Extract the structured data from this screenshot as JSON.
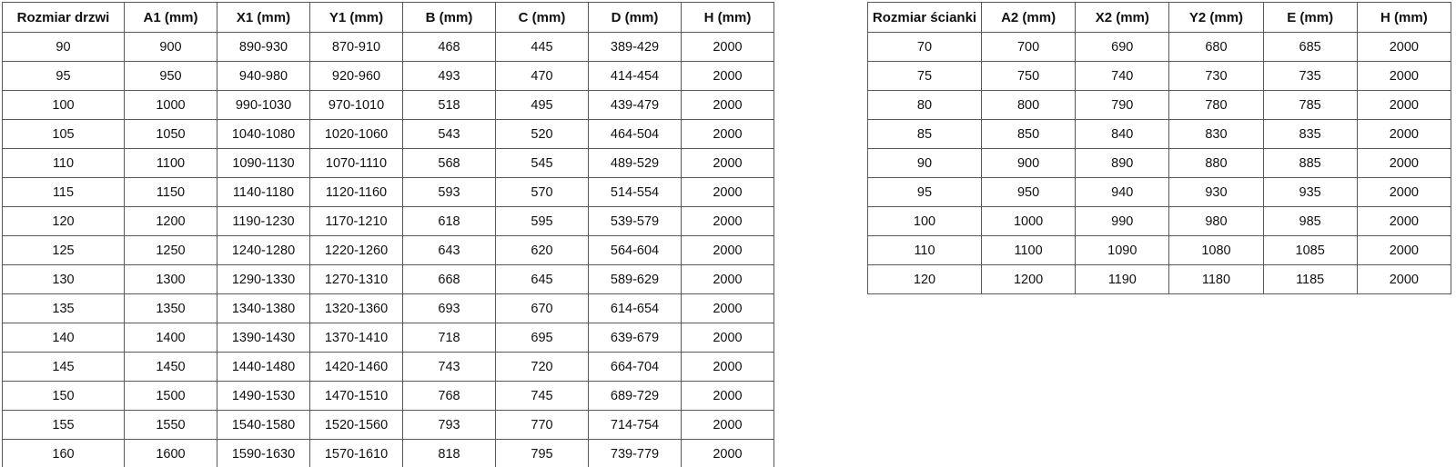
{
  "page": {
    "background_color": "#ffffff",
    "border_color": "#595959",
    "text_color": "#111111"
  },
  "door_table": {
    "title": "Rozmiar drzwi",
    "headers": [
      "Rozmiar drzwi",
      "A1 (mm)",
      "X1 (mm)",
      "Y1 (mm)",
      "B (mm)",
      "C (mm)",
      "D (mm)",
      "H (mm)"
    ],
    "rows": [
      [
        "90",
        "900",
        "890-930",
        "870-910",
        "468",
        "445",
        "389-429",
        "2000"
      ],
      [
        "95",
        "950",
        "940-980",
        "920-960",
        "493",
        "470",
        "414-454",
        "2000"
      ],
      [
        "100",
        "1000",
        "990-1030",
        "970-1010",
        "518",
        "495",
        "439-479",
        "2000"
      ],
      [
        "105",
        "1050",
        "1040-1080",
        "1020-1060",
        "543",
        "520",
        "464-504",
        "2000"
      ],
      [
        "110",
        "1100",
        "1090-1130",
        "1070-1110",
        "568",
        "545",
        "489-529",
        "2000"
      ],
      [
        "115",
        "1150",
        "1140-1180",
        "1120-1160",
        "593",
        "570",
        "514-554",
        "2000"
      ],
      [
        "120",
        "1200",
        "1190-1230",
        "1170-1210",
        "618",
        "595",
        "539-579",
        "2000"
      ],
      [
        "125",
        "1250",
        "1240-1280",
        "1220-1260",
        "643",
        "620",
        "564-604",
        "2000"
      ],
      [
        "130",
        "1300",
        "1290-1330",
        "1270-1310",
        "668",
        "645",
        "589-629",
        "2000"
      ],
      [
        "135",
        "1350",
        "1340-1380",
        "1320-1360",
        "693",
        "670",
        "614-654",
        "2000"
      ],
      [
        "140",
        "1400",
        "1390-1430",
        "1370-1410",
        "718",
        "695",
        "639-679",
        "2000"
      ],
      [
        "145",
        "1450",
        "1440-1480",
        "1420-1460",
        "743",
        "720",
        "664-704",
        "2000"
      ],
      [
        "150",
        "1500",
        "1490-1530",
        "1470-1510",
        "768",
        "745",
        "689-729",
        "2000"
      ],
      [
        "155",
        "1550",
        "1540-1580",
        "1520-1560",
        "793",
        "770",
        "714-754",
        "2000"
      ],
      [
        "160",
        "1600",
        "1590-1630",
        "1570-1610",
        "818",
        "795",
        "739-779",
        "2000"
      ]
    ]
  },
  "wall_table": {
    "title": "Rozmiar ścianki",
    "headers": [
      "Rozmiar ścianki",
      "A2 (mm)",
      "X2 (mm)",
      "Y2 (mm)",
      "E (mm)",
      "H (mm)"
    ],
    "rows": [
      [
        "70",
        "700",
        "690",
        "680",
        "685",
        "2000"
      ],
      [
        "75",
        "750",
        "740",
        "730",
        "735",
        "2000"
      ],
      [
        "80",
        "800",
        "790",
        "780",
        "785",
        "2000"
      ],
      [
        "85",
        "850",
        "840",
        "830",
        "835",
        "2000"
      ],
      [
        "90",
        "900",
        "890",
        "880",
        "885",
        "2000"
      ],
      [
        "95",
        "950",
        "940",
        "930",
        "935",
        "2000"
      ],
      [
        "100",
        "1000",
        "990",
        "980",
        "985",
        "2000"
      ],
      [
        "110",
        "1100",
        "1090",
        "1080",
        "1085",
        "2000"
      ],
      [
        "120",
        "1200",
        "1190",
        "1180",
        "1185",
        "2000"
      ]
    ]
  }
}
